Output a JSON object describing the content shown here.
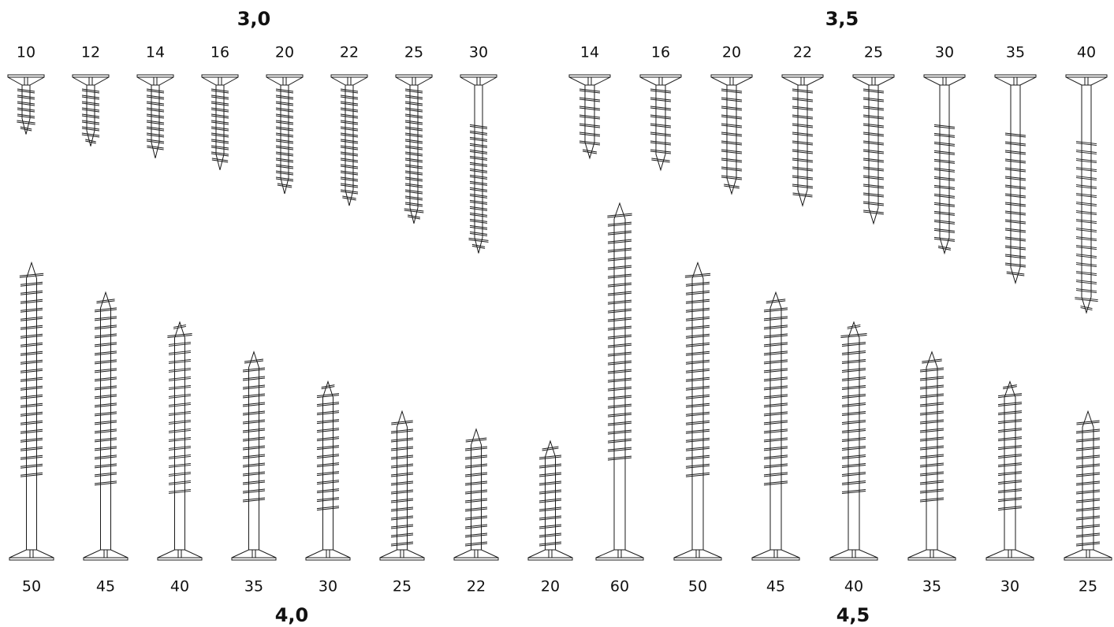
{
  "groups": [
    {
      "diameter": "3,0",
      "lengths": [
        10,
        12,
        14,
        16,
        20,
        22,
        25,
        30
      ]
    },
    {
      "diameter": "3,5",
      "lengths": [
        14,
        16,
        20,
        22,
        25,
        30,
        35,
        40
      ]
    },
    {
      "diameter": "4,0",
      "lengths": [
        50,
        45,
        40,
        35,
        30,
        25,
        22,
        20
      ]
    },
    {
      "diameter": "4,5",
      "lengths": [
        60,
        50,
        45,
        40,
        35,
        30,
        25
      ]
    }
  ]
}
